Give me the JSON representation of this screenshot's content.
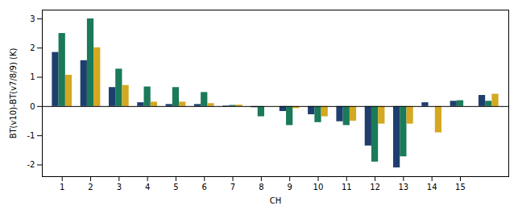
{
  "chart_data": {
    "type": "bar",
    "xlabel": "CH",
    "ylabel": "BT(v10)-BT(v7/8/9) (K)",
    "categories": [
      "1",
      "2",
      "3",
      "4",
      "5",
      "6",
      "7",
      "8",
      "9",
      "10",
      "11",
      "12",
      "13",
      "14",
      "15",
      null
    ],
    "series": [
      {
        "color": "#1e3f6e",
        "values": [
          1.85,
          1.57,
          0.65,
          0.13,
          0.07,
          0.07,
          0.02,
          -0.04,
          -0.17,
          -0.28,
          -0.52,
          -1.35,
          -2.1,
          0.13,
          0.18,
          0.38
        ]
      },
      {
        "color": "#1a7a5a",
        "values": [
          2.5,
          3.0,
          1.28,
          0.67,
          0.65,
          0.48,
          0.04,
          -0.35,
          -0.65,
          -0.55,
          -0.65,
          -1.9,
          -1.72,
          0.0,
          0.2,
          0.18
        ]
      },
      {
        "color": "#d4a820",
        "values": [
          1.07,
          2.01,
          0.72,
          0.15,
          0.15,
          0.1,
          0.05,
          0.0,
          -0.07,
          -0.35,
          -0.5,
          -0.6,
          -0.6,
          -0.9,
          0.0,
          0.42
        ]
      }
    ],
    "ylim": [
      -2.4,
      3.3
    ],
    "yticks": [
      -2,
      -1,
      0,
      1,
      2,
      3
    ],
    "grid": false
  }
}
